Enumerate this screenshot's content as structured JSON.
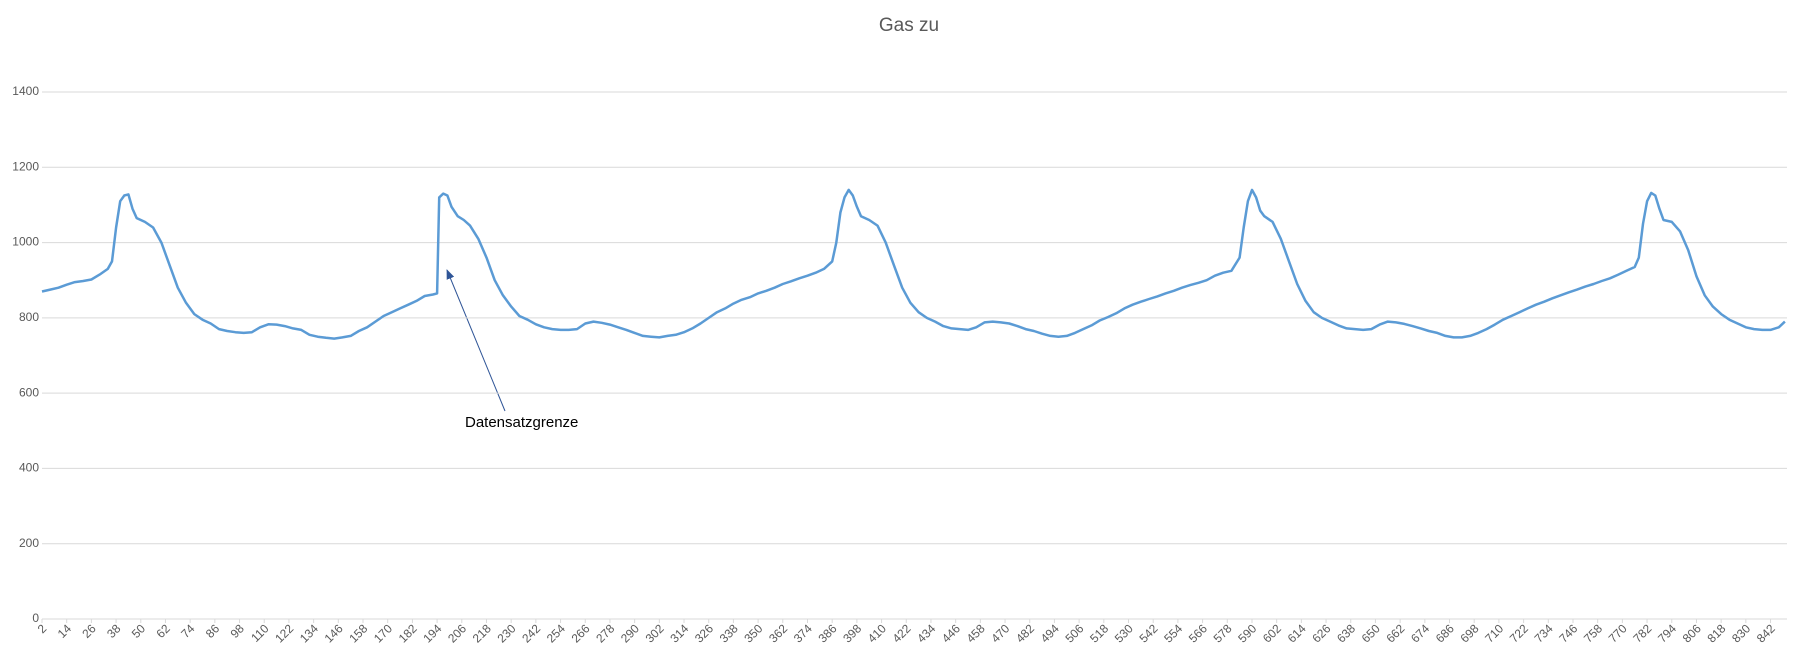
{
  "chart_data": {
    "type": "line",
    "title": "Gas zu",
    "annotation": "Datensatzgrenze",
    "xlim": [
      2,
      850
    ],
    "ylim": [
      0,
      1400
    ],
    "yticks": [
      0,
      200,
      400,
      600,
      800,
      1000,
      1200,
      1400
    ],
    "xticks": [
      2,
      14,
      26,
      38,
      50,
      62,
      74,
      86,
      98,
      110,
      122,
      134,
      146,
      158,
      170,
      182,
      194,
      206,
      218,
      230,
      242,
      254,
      266,
      278,
      290,
      302,
      314,
      326,
      338,
      350,
      362,
      374,
      386,
      398,
      410,
      422,
      434,
      446,
      458,
      470,
      482,
      494,
      506,
      518,
      530,
      542,
      554,
      566,
      578,
      590,
      602,
      614,
      626,
      638,
      650,
      662,
      674,
      686,
      698,
      710,
      722,
      734,
      746,
      758,
      770,
      782,
      794,
      806,
      818,
      830,
      842
    ],
    "grid": true,
    "series": [
      {
        "color": "#5b9bd5",
        "x": [
          2,
          6,
          10,
          14,
          18,
          22,
          26,
          30,
          34,
          36,
          38,
          40,
          42,
          44,
          46,
          48,
          52,
          56,
          60,
          64,
          68,
          72,
          76,
          80,
          84,
          88,
          92,
          96,
          100,
          104,
          108,
          112,
          116,
          120,
          124,
          128,
          132,
          136,
          140,
          144,
          148,
          152,
          156,
          160,
          164,
          168,
          172,
          176,
          180,
          184,
          188,
          192,
          194,
          195,
          197,
          199,
          201,
          204,
          207,
          210,
          214,
          218,
          222,
          226,
          230,
          234,
          238,
          242,
          246,
          250,
          254,
          258,
          262,
          266,
          270,
          274,
          278,
          282,
          286,
          290,
          294,
          298,
          302,
          306,
          310,
          314,
          318,
          322,
          326,
          330,
          334,
          338,
          342,
          346,
          350,
          354,
          358,
          362,
          366,
          370,
          374,
          378,
          382,
          386,
          388,
          390,
          392,
          394,
          396,
          398,
          400,
          404,
          408,
          412,
          416,
          420,
          424,
          428,
          432,
          436,
          440,
          444,
          448,
          452,
          456,
          460,
          464,
          468,
          472,
          476,
          480,
          484,
          488,
          492,
          496,
          500,
          504,
          508,
          512,
          516,
          520,
          524,
          528,
          532,
          536,
          540,
          544,
          548,
          552,
          556,
          560,
          564,
          568,
          572,
          576,
          580,
          584,
          586,
          588,
          590,
          592,
          594,
          596,
          600,
          604,
          608,
          612,
          616,
          620,
          624,
          628,
          632,
          636,
          640,
          644,
          648,
          652,
          656,
          660,
          664,
          668,
          672,
          676,
          680,
          684,
          688,
          692,
          696,
          700,
          704,
          708,
          712,
          716,
          720,
          724,
          728,
          732,
          736,
          740,
          744,
          748,
          752,
          756,
          760,
          764,
          768,
          772,
          776,
          778,
          780,
          782,
          784,
          786,
          788,
          790,
          794,
          798,
          802,
          806,
          810,
          814,
          818,
          822,
          826,
          830,
          834,
          838,
          842,
          846,
          849
        ],
        "values": [
          870,
          875,
          880,
          888,
          895,
          898,
          902,
          915,
          930,
          950,
          1040,
          1110,
          1125,
          1128,
          1090,
          1065,
          1055,
          1040,
          1000,
          940,
          880,
          840,
          810,
          795,
          785,
          770,
          765,
          762,
          760,
          762,
          775,
          783,
          782,
          778,
          772,
          768,
          755,
          750,
          747,
          745,
          748,
          752,
          765,
          775,
          790,
          805,
          815,
          825,
          835,
          845,
          858,
          862,
          865,
          1120,
          1130,
          1125,
          1095,
          1070,
          1060,
          1045,
          1010,
          960,
          900,
          860,
          830,
          805,
          795,
          783,
          775,
          770,
          768,
          768,
          770,
          785,
          790,
          787,
          782,
          775,
          768,
          760,
          752,
          750,
          748,
          752,
          755,
          762,
          772,
          785,
          800,
          815,
          825,
          838,
          848,
          855,
          865,
          872,
          880,
          890,
          897,
          905,
          912,
          920,
          930,
          950,
          1000,
          1080,
          1120,
          1140,
          1125,
          1095,
          1070,
          1060,
          1045,
          1000,
          940,
          880,
          840,
          815,
          800,
          790,
          778,
          772,
          770,
          768,
          775,
          788,
          790,
          788,
          785,
          778,
          770,
          765,
          758,
          752,
          750,
          752,
          760,
          770,
          780,
          793,
          802,
          812,
          825,
          835,
          843,
          850,
          857,
          865,
          872,
          880,
          887,
          893,
          900,
          912,
          920,
          925,
          960,
          1040,
          1110,
          1140,
          1120,
          1085,
          1070,
          1055,
          1010,
          950,
          890,
          845,
          815,
          800,
          790,
          780,
          772,
          770,
          768,
          770,
          782,
          790,
          788,
          784,
          778,
          772,
          765,
          760,
          752,
          748,
          748,
          752,
          760,
          770,
          782,
          795,
          805,
          815,
          825,
          835,
          843,
          852,
          860,
          868,
          875,
          883,
          890,
          898,
          905,
          915,
          925,
          935,
          960,
          1050,
          1110,
          1132,
          1125,
          1090,
          1060,
          1055,
          1030,
          980,
          910,
          860,
          830,
          810,
          795,
          785,
          775,
          770,
          768,
          768,
          775,
          790
        ]
      }
    ]
  }
}
